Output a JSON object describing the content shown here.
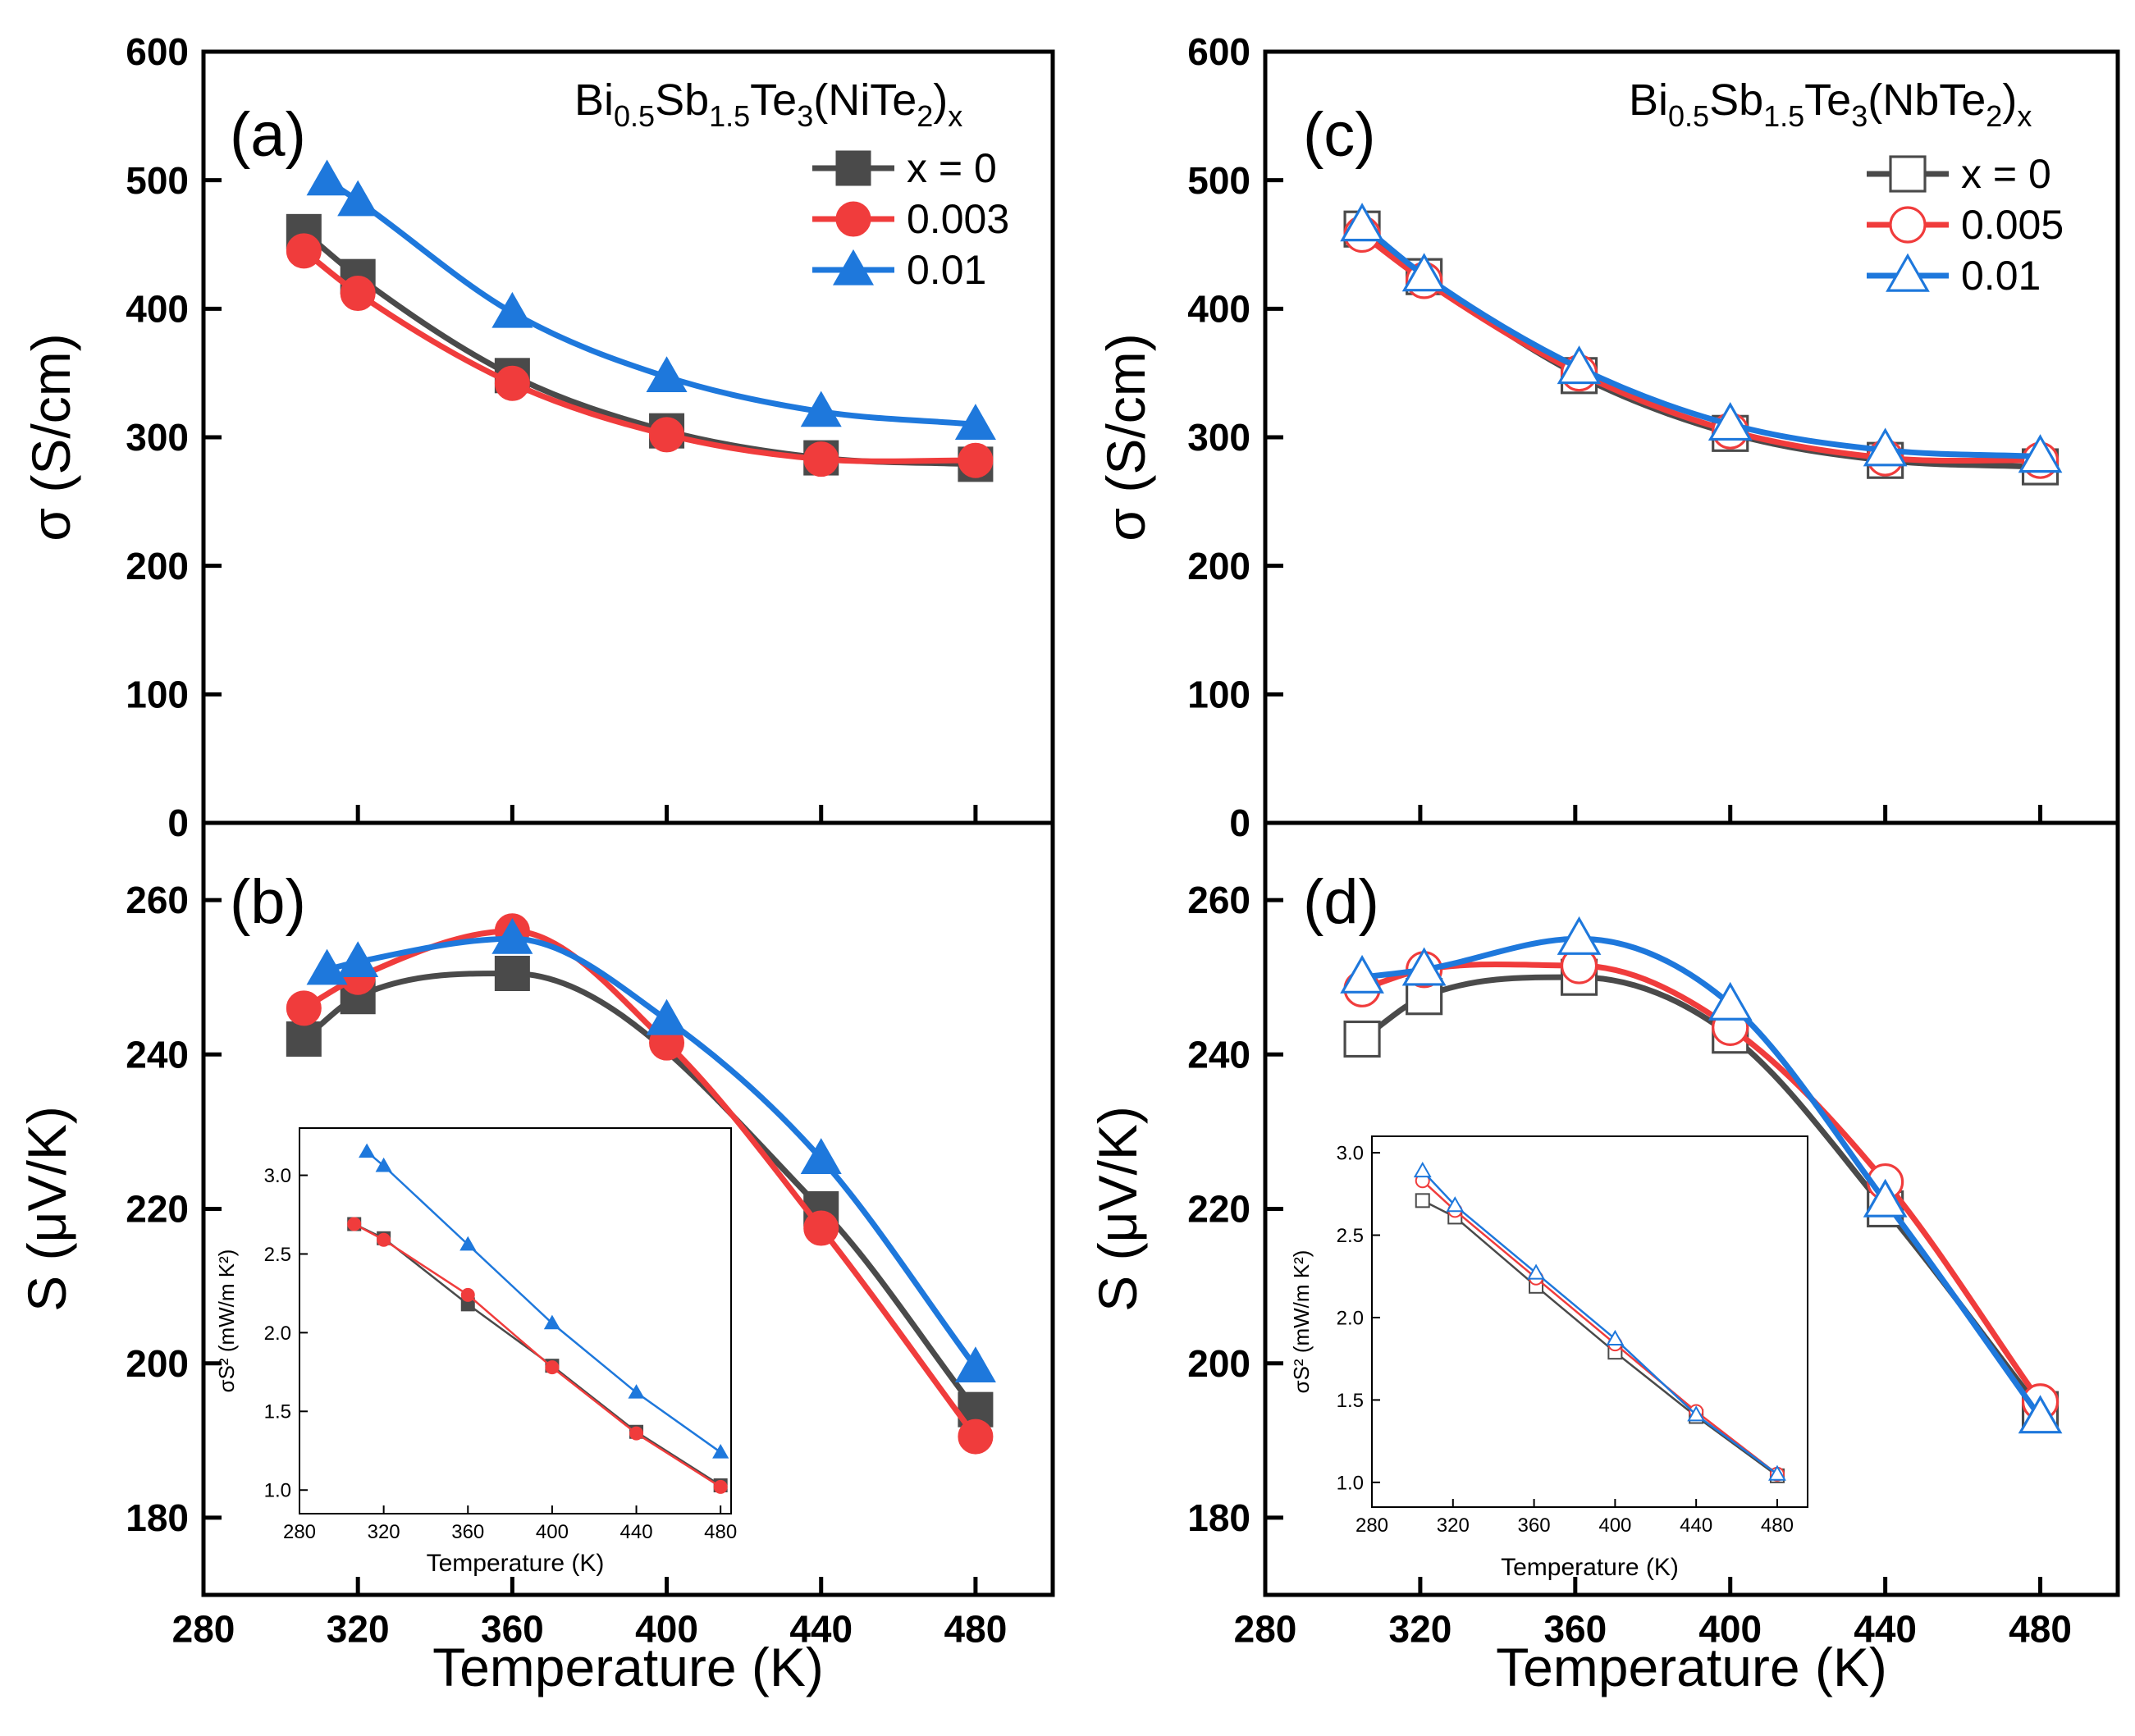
{
  "figure": {
    "x_axis_title": "Temperature (K)",
    "panel_labels": [
      "(a)",
      "(b)",
      "(c)",
      "(d)"
    ],
    "legend_titles": [
      {
        "base": "Bi",
        "s1": "0.5",
        "mid1": "Sb",
        "s2": "1.5",
        "mid2": "Te",
        "s3": "3",
        "mid3": "(NiTe",
        "s4": "2",
        "mid4": ")",
        "s5": "x"
      },
      {
        "base": "Bi",
        "s1": "0.5",
        "mid1": "Sb",
        "s2": "1.5",
        "mid2": "Te",
        "s3": "3",
        "mid3": "(NbTe",
        "s4": "2",
        "mid4": ")",
        "s5": "x"
      }
    ]
  },
  "colors": {
    "black": "#4a4a4a",
    "red": "#f03c3c",
    "blue": "#1e78dc"
  },
  "chart_data": [
    {
      "id": "a",
      "type": "line",
      "title": "(a)",
      "xlabel": "",
      "ylabel": "σ (S/cm)",
      "xlim": [
        280,
        500
      ],
      "ylim": [
        0,
        600
      ],
      "xticks": [
        280,
        320,
        360,
        400,
        440,
        480
      ],
      "yticks": [
        0,
        100,
        200,
        300,
        400,
        500,
        600
      ],
      "legend": "top-right",
      "filled": true,
      "series": [
        {
          "name": "x = 0",
          "color": "black",
          "marker": "square",
          "x": [
            306,
            320,
            360,
            400,
            440,
            480
          ],
          "y": [
            460,
            425,
            348,
            305,
            284,
            279
          ]
        },
        {
          "name": "0.003",
          "color": "red",
          "marker": "circle",
          "x": [
            306,
            320,
            360,
            400,
            440,
            480
          ],
          "y": [
            445,
            412,
            342,
            302,
            283,
            282
          ]
        },
        {
          "name": "0.01",
          "color": "blue",
          "marker": "triangle",
          "x": [
            312,
            320,
            360,
            400,
            440,
            480
          ],
          "y": [
            500,
            484,
            397,
            347,
            320,
            310
          ]
        }
      ]
    },
    {
      "id": "b",
      "type": "line",
      "title": "(b)",
      "xlabel": "Temperature (K)",
      "ylabel": "S (μV/K)",
      "xlim": [
        280,
        500
      ],
      "ylim": [
        170,
        270
      ],
      "xticks": [
        280,
        320,
        360,
        400,
        440,
        480
      ],
      "yticks": [
        180,
        200,
        220,
        240,
        260
      ],
      "filled": true,
      "series": [
        {
          "name": "x = 0",
          "color": "black",
          "marker": "square",
          "x": [
            306,
            320,
            360,
            440,
            480
          ],
          "y": [
            242,
            247.5,
            250.5,
            220,
            194
          ]
        },
        {
          "name": "0.003",
          "color": "red",
          "marker": "circle",
          "x": [
            306,
            320,
            360,
            400,
            440,
            480
          ],
          "y": [
            246,
            250,
            256,
            241.5,
            217.5,
            190.5
          ]
        },
        {
          "name": "0.01",
          "color": "blue",
          "marker": "triangle",
          "x": [
            312,
            320,
            360,
            400,
            440,
            480
          ],
          "y": [
            251,
            252,
            255,
            244.5,
            226.5,
            199.5
          ]
        }
      ]
    },
    {
      "id": "b_inset",
      "type": "line",
      "title": "",
      "xlabel": "Temperature (K)",
      "ylabel": "σS² (mW/m K²)",
      "xlim": [
        280,
        485
      ],
      "ylim": [
        0.85,
        3.3
      ],
      "xticks": [
        280,
        320,
        360,
        400,
        440,
        480
      ],
      "yticks": [
        1.0,
        1.5,
        2.0,
        2.5,
        3.0
      ],
      "filled": true,
      "series": [
        {
          "name": "x = 0",
          "color": "black",
          "marker": "square",
          "x": [
            306,
            320,
            360,
            400,
            440,
            480
          ],
          "y": [
            2.69,
            2.6,
            2.18,
            1.79,
            1.37,
            1.03
          ]
        },
        {
          "name": "0.003",
          "color": "red",
          "marker": "circle",
          "x": [
            306,
            320,
            360,
            400,
            440,
            480
          ],
          "y": [
            2.69,
            2.59,
            2.24,
            1.78,
            1.36,
            1.02
          ]
        },
        {
          "name": "0.01",
          "color": "blue",
          "marker": "triangle",
          "x": [
            312,
            320,
            360,
            400,
            440,
            480
          ],
          "y": [
            3.15,
            3.06,
            2.56,
            2.06,
            1.62,
            1.24
          ]
        }
      ]
    },
    {
      "id": "c",
      "type": "line",
      "title": "(c)",
      "xlabel": "",
      "ylabel": "σ (S/cm)",
      "xlim": [
        280,
        500
      ],
      "ylim": [
        0,
        600
      ],
      "xticks": [
        280,
        320,
        360,
        400,
        440,
        480
      ],
      "yticks": [
        0,
        100,
        200,
        300,
        400,
        500,
        600
      ],
      "legend": "top-right",
      "filled": false,
      "series": [
        {
          "name": "x = 0",
          "color": "black",
          "marker": "square",
          "x": [
            305,
            321,
            361,
            400,
            440,
            480
          ],
          "y": [
            462,
            425,
            348,
            303,
            282,
            277
          ]
        },
        {
          "name": "0.005",
          "color": "red",
          "marker": "circle",
          "x": [
            305,
            321,
            361,
            400,
            440,
            480
          ],
          "y": [
            458,
            422,
            350,
            305,
            284,
            282
          ]
        },
        {
          "name": "0.01",
          "color": "blue",
          "marker": "triangle",
          "x": [
            305,
            321,
            361,
            400,
            440,
            480
          ],
          "y": [
            465,
            426,
            354,
            310,
            290,
            285
          ]
        }
      ]
    },
    {
      "id": "d",
      "type": "line",
      "title": "(d)",
      "xlabel": "Temperature (K)",
      "ylabel": "S (μV/K)",
      "xlim": [
        280,
        500
      ],
      "ylim": [
        170,
        270
      ],
      "xticks": [
        280,
        320,
        360,
        400,
        440,
        480
      ],
      "yticks": [
        180,
        200,
        220,
        240,
        260
      ],
      "filled": false,
      "series": [
        {
          "name": "x = 0",
          "color": "black",
          "marker": "square",
          "x": [
            305,
            321,
            361,
            400,
            440,
            480
          ],
          "y": [
            242,
            247.5,
            250,
            242.5,
            220,
            194
          ]
        },
        {
          "name": "0.005",
          "color": "red",
          "marker": "circle",
          "x": [
            305,
            321,
            361,
            400,
            440,
            480
          ],
          "y": [
            248.5,
            251,
            251.5,
            243.5,
            223.5,
            195
          ]
        },
        {
          "name": "0.01",
          "color": "blue",
          "marker": "triangle",
          "x": [
            305,
            321,
            361,
            400,
            440,
            480
          ],
          "y": [
            250,
            251,
            255,
            246.5,
            221,
            193
          ]
        }
      ]
    },
    {
      "id": "d_inset",
      "type": "line",
      "title": "",
      "xlabel": "Temperature (K)",
      "ylabel": "σS² (mW/m K²)",
      "xlim": [
        280,
        495
      ],
      "ylim": [
        0.85,
        3.1
      ],
      "xticks": [
        280,
        320,
        360,
        400,
        440,
        480
      ],
      "yticks": [
        1.0,
        1.5,
        2.0,
        2.5,
        3.0
      ],
      "filled": false,
      "series": [
        {
          "name": "x = 0",
          "color": "black",
          "marker": "square",
          "x": [
            305,
            321,
            361,
            400,
            440,
            480
          ],
          "y": [
            2.71,
            2.61,
            2.19,
            1.79,
            1.4,
            1.04
          ]
        },
        {
          "name": "0.005",
          "color": "red",
          "marker": "circle",
          "x": [
            305,
            321,
            361,
            400,
            440,
            480
          ],
          "y": [
            2.83,
            2.65,
            2.24,
            1.84,
            1.43,
            1.05
          ]
        },
        {
          "name": "0.01",
          "color": "blue",
          "marker": "triangle",
          "x": [
            305,
            321,
            361,
            400,
            440,
            480
          ],
          "y": [
            2.89,
            2.68,
            2.27,
            1.87,
            1.41,
            1.05
          ]
        }
      ]
    }
  ]
}
